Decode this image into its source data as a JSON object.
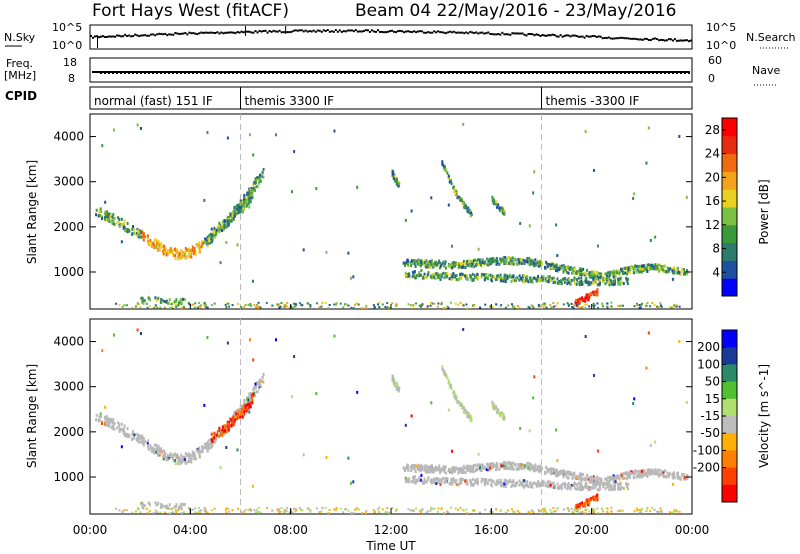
{
  "header": {
    "station": "Fort Hays West (fitACF)",
    "beam_date": "Beam 04 22/May/2016 - 23/May/2016"
  },
  "top_panels": {
    "nsky_label": "N.Sky",
    "nsearch_label": "N.Search",
    "nsky_ticks": [
      "10^5",
      "10^0"
    ],
    "nsearch_ticks": [
      "10^5",
      "10^0"
    ],
    "freq_label": "Freq.",
    "freq_unit": "[MHz]",
    "freq_ticks": [
      "18",
      "8"
    ],
    "nave_label": "Nave",
    "nave_ticks": [
      "60",
      "0"
    ],
    "cpid_label": "CPID",
    "cpid_segments": [
      {
        "label": "normal (fast) 151 IF",
        "start_hour": 0
      },
      {
        "label": "themis 3300 IF",
        "start_hour": 6
      },
      {
        "label": "themis -3300 IF",
        "start_hour": 18
      }
    ]
  },
  "colors": {
    "power": [
      "#0000ff",
      "#1f4fa0",
      "#2e7a6e",
      "#3a9a3a",
      "#7ac143",
      "#e8d21f",
      "#f2a319",
      "#f06a12",
      "#e82a0e",
      "#ff0000"
    ],
    "velocity_palette": [
      "#ff0000",
      "#ff4000",
      "#ff8000",
      "#ffb000",
      "#bdbdbd",
      "#b0e070",
      "#50c030",
      "#2a8a6a",
      "#1a3a9a",
      "#0000ff"
    ],
    "ground_scatter": "#b8b8b8"
  },
  "chart_data": [
    {
      "type": "heatmap",
      "title": "Power",
      "ylabel": "Slant Range [km]",
      "xlabel": "",
      "xlim": [
        0,
        24
      ],
      "ylim": [
        180,
        4500
      ],
      "yticks": [
        "1000",
        "2000",
        "3000",
        "4000"
      ],
      "xticks": [
        "00:00",
        "04:00",
        "08:00",
        "12:00",
        "16:00",
        "20:00",
        "00:00"
      ],
      "colorbar": {
        "label": "Power [dB]",
        "ticks": [
          "4",
          "8",
          "12",
          "16",
          "20",
          "24",
          "28"
        ],
        "range": [
          0,
          30
        ]
      },
      "series": [
        {
          "name": "arc1",
          "points": [
            [
              0.2,
              2350
            ],
            [
              0.8,
              2200
            ],
            [
              1.5,
              1980
            ],
            [
              2.2,
              1750
            ],
            [
              2.9,
              1500
            ],
            [
              3.5,
              1380
            ],
            [
              4.1,
              1450
            ],
            [
              4.7,
              1700
            ],
            [
              5.3,
              2050
            ],
            [
              5.9,
              2450
            ],
            [
              6.4,
              2800
            ],
            [
              6.9,
              3200
            ]
          ]
        },
        {
          "name": "arc2",
          "points": [
            [
              4.8,
              1850
            ],
            [
              5.4,
              2100
            ],
            [
              6.0,
              2400
            ],
            [
              6.5,
              2750
            ]
          ]
        },
        {
          "name": "band1",
          "points": [
            [
              12.4,
              1200
            ],
            [
              13.5,
              1180
            ],
            [
              14.5,
              1150
            ],
            [
              15.5,
              1200
            ],
            [
              16.5,
              1250
            ],
            [
              17.5,
              1230
            ],
            [
              18.5,
              1100
            ],
            [
              19.5,
              1000
            ],
            [
              20.5,
              900
            ],
            [
              21.5,
              1050
            ],
            [
              22.5,
              1100
            ],
            [
              23.8,
              980
            ]
          ]
        },
        {
          "name": "band2",
          "points": [
            [
              12.5,
              950
            ],
            [
              14.0,
              900
            ],
            [
              15.5,
              880
            ],
            [
              17.0,
              850
            ],
            [
              18.5,
              820
            ],
            [
              20.0,
              780
            ],
            [
              21.5,
              800
            ]
          ]
        },
        {
          "name": "streak1",
          "points": [
            [
              14.0,
              3400
            ],
            [
              14.6,
              2700
            ],
            [
              15.2,
              2250
            ]
          ]
        },
        {
          "name": "streak2",
          "points": [
            [
              12.0,
              3200
            ],
            [
              12.3,
              2900
            ]
          ]
        },
        {
          "name": "streak3",
          "points": [
            [
              16.0,
              2600
            ],
            [
              16.5,
              2300
            ]
          ]
        },
        {
          "name": "spot_near",
          "points": [
            [
              2.0,
              380
            ],
            [
              3.8,
              350
            ]
          ]
        },
        {
          "name": "red_blob",
          "points": [
            [
              19.3,
              300
            ],
            [
              20.2,
              550
            ]
          ]
        }
      ]
    },
    {
      "type": "heatmap",
      "title": "Velocity",
      "ylabel": "Slant Range [km]",
      "xlabel": "Time UT",
      "xlim": [
        0,
        24
      ],
      "ylim": [
        180,
        4500
      ],
      "yticks": [
        "1000",
        "2000",
        "3000",
        "4000"
      ],
      "xticks": [
        "00:00",
        "04:00",
        "08:00",
        "12:00",
        "16:00",
        "20:00",
        "00:00"
      ],
      "colorbar": {
        "label": "Velocity [m s^-1]",
        "ticks": [
          "200",
          "100",
          "50",
          "15",
          "-15",
          "-50",
          "-100",
          "-200"
        ]
      }
    }
  ]
}
